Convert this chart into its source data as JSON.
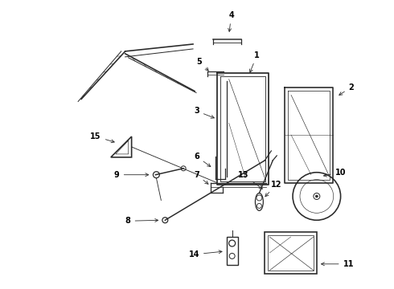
{
  "bg_color": "#ffffff",
  "line_color": "#2a2a2a",
  "label_color": "#000000",
  "label_fontsize": 7,
  "figsize": [
    4.9,
    3.6
  ],
  "dpi": 100
}
